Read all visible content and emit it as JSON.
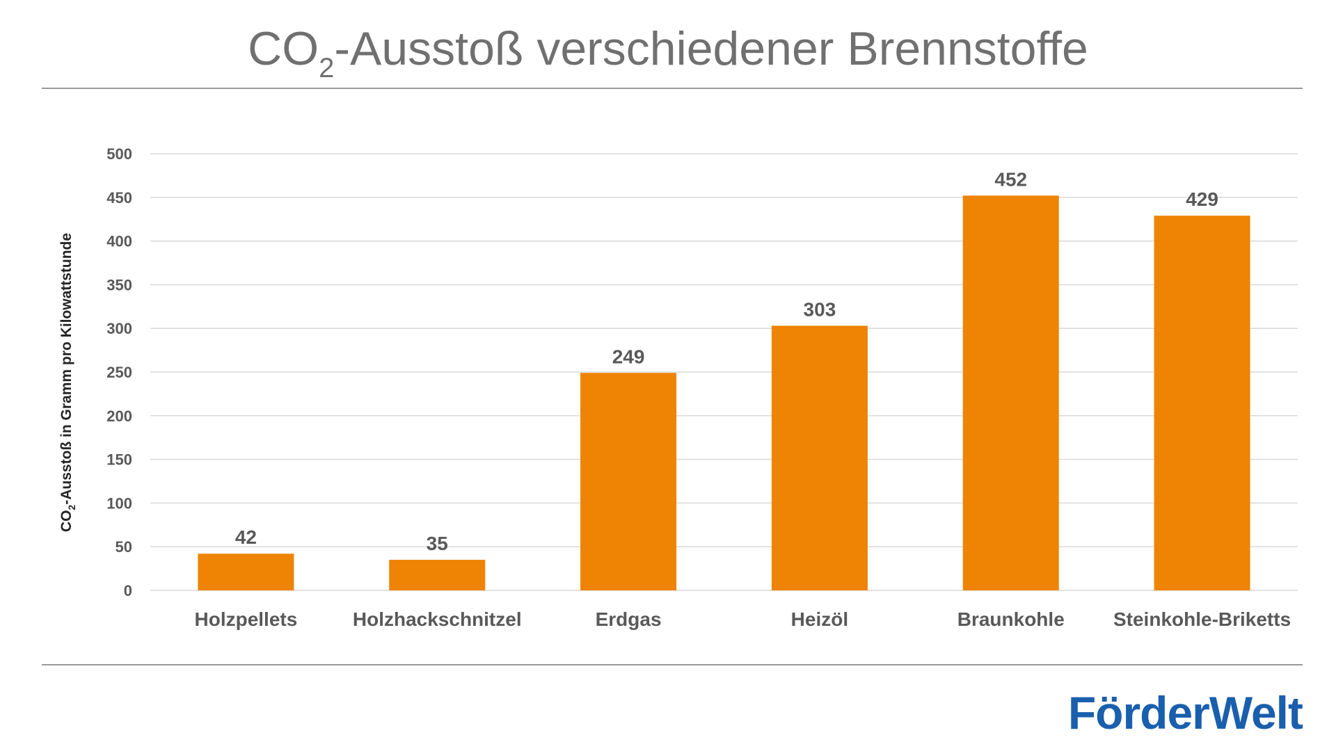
{
  "title": {
    "prefix": "CO",
    "subscript": "2",
    "suffix": "-Ausstoß verschiedener Brennstoffe"
  },
  "logo": {
    "text": "FörderWelt"
  },
  "colors": {
    "bar": "#ee8304",
    "grid": "#d9d9d9",
    "text": "#595959",
    "title": "#707070",
    "logo": "#1a5fad"
  },
  "chart_data": {
    "type": "bar",
    "title": "CO2-Ausstoß verschiedener Brennstoffe",
    "ylabel_prefix": "CO",
    "ylabel_subscript": "2",
    "ylabel_suffix": "-Ausstoß in Gramm pro Kilowattstunde",
    "xlabel": "",
    "categories": [
      "Holzpellets",
      "Holzhackschnitzel",
      "Erdgas",
      "Heizöl",
      "Braunkohle",
      "Steinkohle-Briketts"
    ],
    "values": [
      42,
      35,
      249,
      303,
      452,
      429
    ],
    "ylim": [
      0,
      500
    ],
    "yticks": [
      0,
      50,
      100,
      150,
      200,
      250,
      300,
      350,
      400,
      450,
      500
    ],
    "grid": true,
    "legend": "none"
  }
}
